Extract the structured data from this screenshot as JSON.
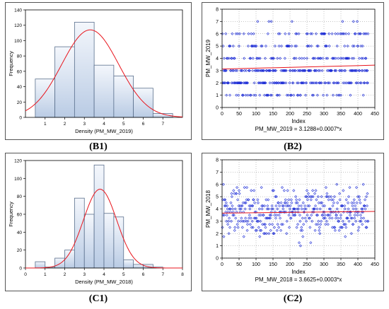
{
  "labels": {
    "b1": "(B1)",
    "b2": "(B2)",
    "c1": "(C1)",
    "c2": "(C2)"
  },
  "colors": {
    "bar_fill_top": "#f4f7fc",
    "bar_fill_bottom": "#b9cbe4",
    "bar_stroke": "#5a6f8c",
    "fit": "#e8141c",
    "points": "#1b2bd6"
  },
  "chart_data": [
    {
      "id": "B1",
      "type": "bar",
      "subtype": "histogram",
      "xlabel": "Density (PM_MW_2019)",
      "ylabel": "Frequency",
      "xlim": [
        0,
        8
      ],
      "ylim": [
        0,
        140
      ],
      "xticks": [
        1,
        2,
        3,
        4,
        5,
        6,
        7
      ],
      "yticks": [
        0,
        20,
        40,
        60,
        80,
        100,
        120,
        140
      ],
      "bins": [
        [
          0.5,
          1.5
        ],
        [
          1.5,
          2.5
        ],
        [
          2.5,
          3.5
        ],
        [
          3.5,
          4.5
        ],
        [
          4.5,
          5.5
        ],
        [
          5.5,
          6.5
        ],
        [
          6.5,
          7.5
        ]
      ],
      "values": [
        50,
        92,
        124,
        68,
        54,
        38,
        5
      ],
      "fit_curve": {
        "type": "normal",
        "mean": 3.3,
        "sd": 1.45,
        "peak": 114
      }
    },
    {
      "id": "B2",
      "type": "scatter",
      "xlabel": "Index",
      "ylabel": "PM_MW_2019",
      "xlim": [
        0,
        450
      ],
      "ylim": [
        0,
        8
      ],
      "xticks": [
        0,
        50,
        100,
        150,
        200,
        250,
        300,
        350,
        400,
        450
      ],
      "yticks": [
        0,
        1,
        2,
        3,
        4,
        5,
        6,
        7,
        8
      ],
      "n_points": 430,
      "discrete_levels": [
        1,
        2,
        3,
        4,
        5,
        6,
        7
      ],
      "regression": {
        "intercept": 3.1288,
        "slope": 0.0007
      },
      "equation": "PM_MW_2019 = 3.1288+0.0007*x"
    },
    {
      "id": "C1",
      "type": "bar",
      "subtype": "histogram",
      "xlabel": "Density (PM_MW_2018)",
      "ylabel": "Frequency",
      "xlim": [
        0,
        8
      ],
      "ylim": [
        0,
        120
      ],
      "xticks": [
        0,
        1,
        2,
        3,
        4,
        5,
        6,
        7,
        8
      ],
      "yticks": [
        0,
        20,
        40,
        60,
        80,
        100,
        120
      ],
      "bins": [
        [
          0.5,
          1.0
        ],
        [
          1.0,
          1.5
        ],
        [
          1.5,
          2.0
        ],
        [
          2.0,
          2.5
        ],
        [
          2.5,
          3.0
        ],
        [
          3.0,
          3.5
        ],
        [
          3.5,
          4.0
        ],
        [
          4.0,
          4.5
        ],
        [
          4.5,
          5.0
        ],
        [
          5.0,
          5.5
        ],
        [
          5.5,
          6.0
        ],
        [
          6.0,
          6.5
        ],
        [
          6.5,
          7.0
        ]
      ],
      "values": [
        7,
        1,
        11,
        20,
        78,
        60,
        115,
        61,
        57,
        9,
        4,
        4,
        1
      ],
      "fit_curve": {
        "type": "normal",
        "mean": 3.8,
        "sd": 0.85,
        "peak": 88
      }
    },
    {
      "id": "C2",
      "type": "scatter",
      "xlabel": "Index",
      "ylabel": "PM_MW_2018",
      "xlim": [
        0,
        450
      ],
      "ylim": [
        0,
        8
      ],
      "xticks": [
        0,
        50,
        100,
        150,
        200,
        250,
        300,
        350,
        400,
        450
      ],
      "yticks": [
        0,
        1,
        2,
        3,
        4,
        5,
        6,
        7,
        8
      ],
      "n_points": 430,
      "regression": {
        "intercept": 3.6625,
        "slope": 0.0003
      },
      "equation": "PM_MW_2018 = 3.6625+0.0003*x"
    }
  ]
}
